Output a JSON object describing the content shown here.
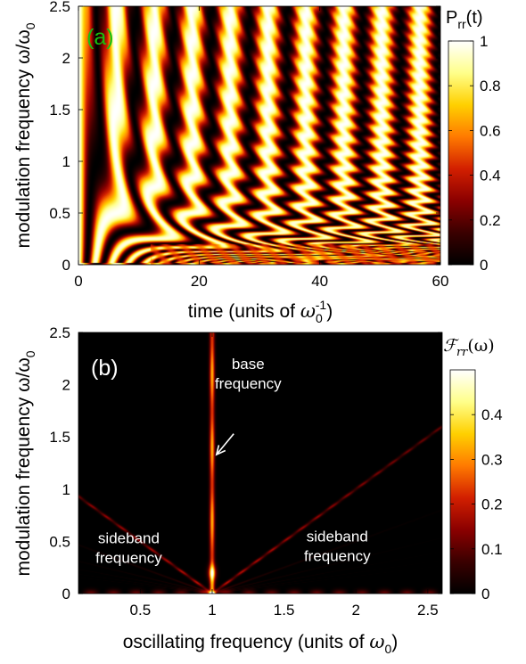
{
  "colors": {
    "colormap": [
      "#000000",
      "#3a0000",
      "#8b0000",
      "#d21f00",
      "#ff7a00",
      "#ffd000",
      "#ffff8a",
      "#ffffff"
    ],
    "panel_label_a": "#18c010",
    "panel_label_b": "#ffffff",
    "annotation": "#ffffff",
    "axis": "#000000"
  },
  "chart_data": [
    {
      "type": "heatmap",
      "panel_label": "(a)",
      "xlabel": "time (units of ",
      "xlabel_symbol": "ω",
      "xlabel_sub": "0",
      "xlabel_sup": "-1",
      "xlabel_close": ")",
      "ylabel": "modulation frequency ω/ω",
      "ylabel_sub": "0",
      "xlim": [
        0,
        60
      ],
      "ylim": [
        0,
        2.5
      ],
      "xticks": [
        "0",
        "20",
        "40",
        "60"
      ],
      "xtick_values": [
        0,
        20,
        40,
        60
      ],
      "yticks": [
        "0",
        "0.5",
        "1",
        "1.5",
        "2",
        "2.5"
      ],
      "ytick_values": [
        0,
        0.5,
        1,
        1.5,
        2,
        2.5
      ],
      "colorbar": {
        "title": "P",
        "title_sub": "rr",
        "title_suffix": "(t)",
        "range": [
          0,
          1
        ],
        "ticks": [
          "0",
          "0.2",
          "0.4",
          "0.6",
          "0.8",
          "1"
        ],
        "tick_values": [
          0,
          0.2,
          0.4,
          0.6,
          0.8,
          1
        ]
      }
    },
    {
      "type": "heatmap",
      "panel_label": "(b)",
      "xlabel": "oscillating frequency (units of ",
      "xlabel_symbol": "ω",
      "xlabel_sub": "0",
      "xlabel_close": ")",
      "ylabel": "modulation frequency ω/ω",
      "ylabel_sub": "0",
      "xlim": [
        0.07,
        2.6
      ],
      "ylim": [
        0,
        2.5
      ],
      "xticks": [
        "0.5",
        "1",
        "1.5",
        "2",
        "2.5"
      ],
      "xtick_values": [
        0.5,
        1,
        1.5,
        2,
        2.5
      ],
      "yticks": [
        "0",
        "0.5",
        "1",
        "1.5",
        "2",
        "2.5"
      ],
      "ytick_values": [
        0,
        0.5,
        1,
        1.5,
        2,
        2.5
      ],
      "colorbar": {
        "title": "ℱ",
        "title_sub": "rr",
        "title_suffix": "(ω)",
        "range": [
          0,
          0.5
        ],
        "ticks": [
          "0",
          "0.1",
          "0.2",
          "0.3",
          "0.4"
        ],
        "tick_values": [
          0,
          0.1,
          0.2,
          0.3,
          0.4
        ]
      },
      "annotations": [
        {
          "lines": [
            "base",
            "frequency"
          ],
          "x": 1.25,
          "y": 2.15
        },
        {
          "lines": [
            "sideband",
            "frequency"
          ],
          "x": 0.42,
          "y": 0.48
        },
        {
          "lines": [
            "sideband",
            "frequency"
          ],
          "x": 1.87,
          "y": 0.5
        }
      ],
      "arrow": {
        "from": [
          1.15,
          1.53
        ],
        "to": [
          1.03,
          1.33
        ]
      }
    }
  ]
}
